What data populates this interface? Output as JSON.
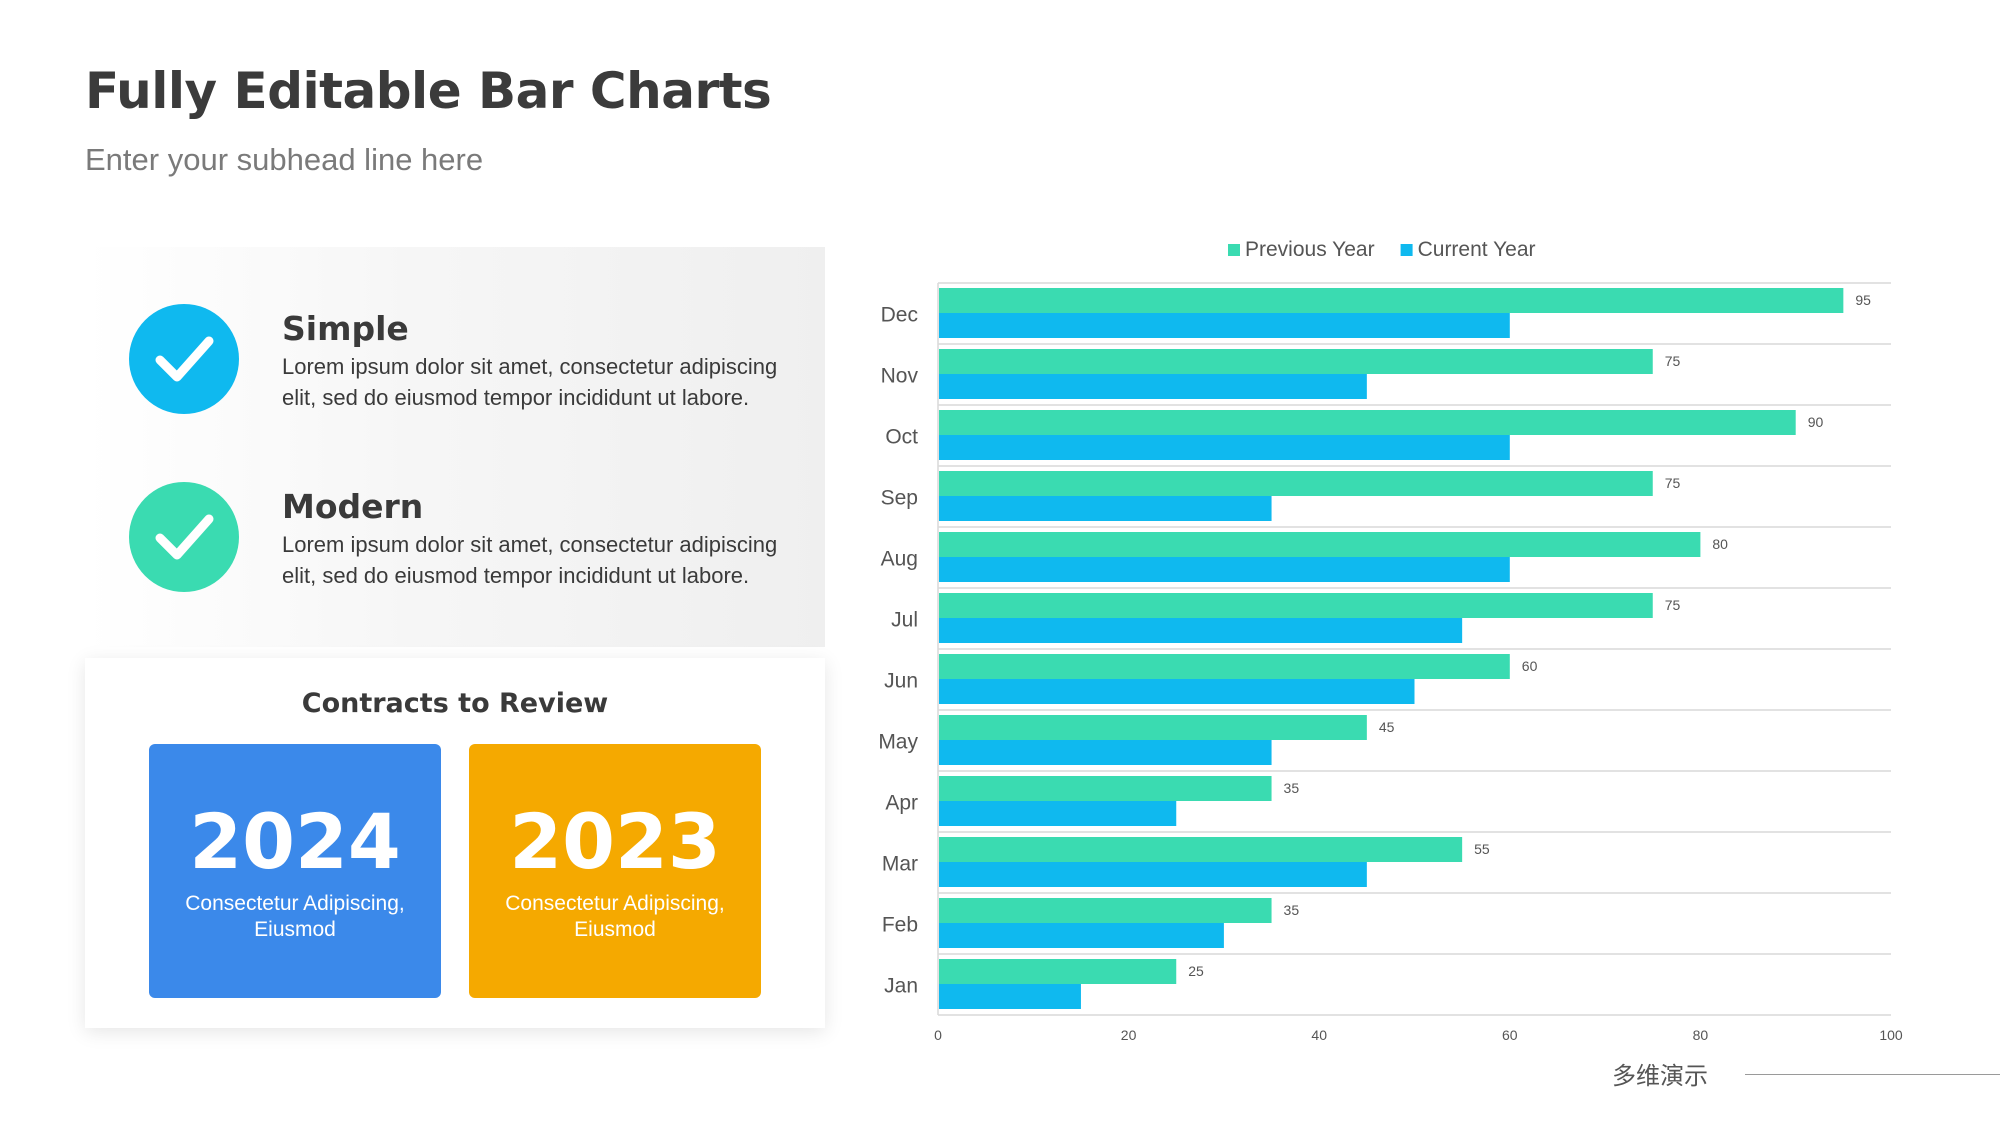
{
  "header": {
    "title": "Fully Editable Bar Charts",
    "subtitle": "Enter your subhead line here"
  },
  "features": [
    {
      "title": "Simple",
      "description": "Lorem ipsum dolor sit amet, consectetur adipiscing elit, sed do eiusmod tempor incididunt ut labore.",
      "icon": "check-circle-icon",
      "color": "#0FB9EF"
    },
    {
      "title": "Modern",
      "description": "Lorem ipsum dolor sit amet, consectetur adipiscing elit, sed do eiusmod tempor incididunt ut labore.",
      "icon": "check-circle-icon",
      "color": "#3ADBB1"
    }
  ],
  "contracts": {
    "title": "Contracts to Review",
    "cards": [
      {
        "year": "2024",
        "description": "Consectetur Adipiscing, Eiusmod",
        "color": "#3B89EA"
      },
      {
        "year": "2023",
        "description": "Consectetur Adipiscing, Eiusmod",
        "color": "#F5A900"
      }
    ]
  },
  "chart_data": {
    "type": "bar",
    "orientation": "horizontal",
    "categories": [
      "Dec",
      "Nov",
      "Oct",
      "Sep",
      "Aug",
      "Jul",
      "Jun",
      "May",
      "Apr",
      "Mar",
      "Feb",
      "Jan"
    ],
    "series": [
      {
        "name": "Previous Year",
        "color": "#3ADBB1",
        "values": [
          95,
          75,
          90,
          75,
          80,
          75,
          60,
          45,
          35,
          55,
          35,
          25
        ]
      },
      {
        "name": "Current Year",
        "color": "#0FB9EF",
        "values": [
          60,
          45,
          60,
          35,
          60,
          55,
          50,
          35,
          25,
          45,
          30,
          15
        ]
      }
    ],
    "data_labels_series": "Previous Year",
    "xlim": [
      0,
      100
    ],
    "xticks": [
      0,
      20,
      40,
      60,
      80,
      100
    ],
    "title": "",
    "xlabel": "",
    "ylabel": "",
    "legend": "top",
    "grid": "horizontal"
  },
  "footer": {
    "brand": "多维演示"
  }
}
